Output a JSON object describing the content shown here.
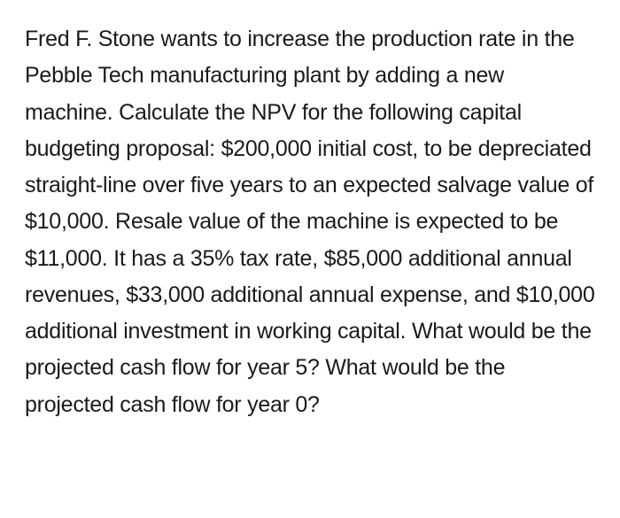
{
  "problem": {
    "text": "Fred F. Stone wants to increase the production rate in the Pebble Tech manufacturing plant by adding a new machine. Calculate the NPV for the following capital budgeting proposal: $200,000 initial cost, to be depreciated straight-line over five years to an expected salvage value of $10,000. Resale value of the machine is expected to be $11,000. It has a 35% tax rate, $85,000 additional annual revenues, $33,000 additional annual expense, and $10,000 additional investment in working capital. What would be the projected cash flow for year 5? What would be the projected cash flow for year 0?",
    "text_color": "#1a1a1a",
    "background_color": "#ffffff",
    "fontsize": 25,
    "line_height": 1.65
  }
}
